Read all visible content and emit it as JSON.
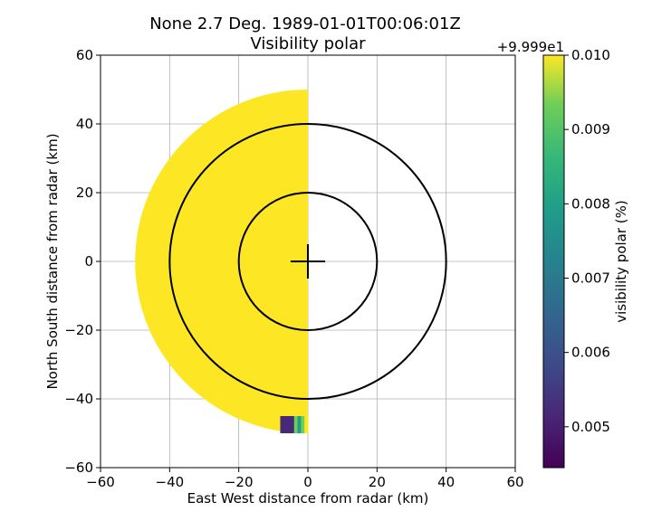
{
  "chart_data": {
    "type": "heatmap",
    "title": "None 2.7 Deg. 1989-01-01T00:06:01Z",
    "subtitle": "Visibility polar",
    "xlabel": "East West distance from radar (km)",
    "ylabel": "North South distance from radar (km)",
    "xlim": [
      -60,
      60
    ],
    "ylim": [
      -60,
      60
    ],
    "xticks": [
      "−60",
      "−40",
      "−20",
      "0",
      "20",
      "40",
      "60"
    ],
    "yticks": [
      "−60",
      "−40",
      "−20",
      "0",
      "20",
      "40",
      "60"
    ],
    "grid": true,
    "colorbar": {
      "label": "visibility polar (%)",
      "offset_text": "+9.999e1",
      "min": 0.00445,
      "max": 0.01,
      "ticks": [
        "0.005",
        "0.006",
        "0.007",
        "0.008",
        "0.009",
        "0.010"
      ],
      "colormap": "viridis"
    },
    "data_sector": {
      "max_range_km": 50,
      "azimuth_from_deg": 180,
      "azimuth_to_deg": 360,
      "value": 0.01
    },
    "low_value_patch": {
      "x_range_km": [
        -8,
        0
      ],
      "y_range_km": [
        -50,
        -45
      ],
      "values": [
        0.0049,
        0.0046,
        0.0045,
        0.005,
        0.0088,
        0.0075,
        0.0092,
        0.0099
      ]
    },
    "range_rings_km": [
      20,
      40
    ],
    "cross_half_length_km": 5,
    "colors": {
      "sector": "#fde725",
      "rings": "#000000",
      "grid": "#b0b0b0"
    }
  }
}
